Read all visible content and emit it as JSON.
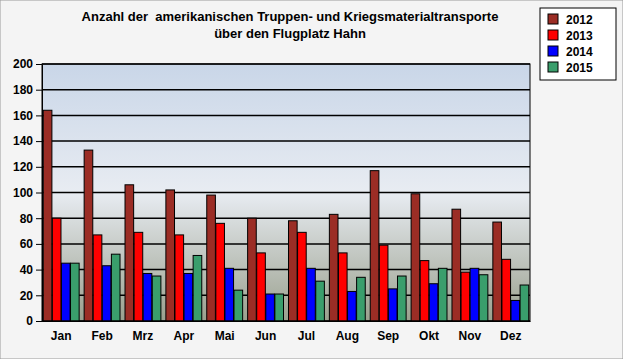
{
  "chart_data": {
    "type": "bar",
    "title": "Anzahl der  amerikanischen Truppen- und Kriegsmaterialtransporte\nüber den Flugplatz Hahn",
    "categories": [
      "Jan",
      "Feb",
      "Mrz",
      "Apr",
      "Mai",
      "Jun",
      "Jul",
      "Aug",
      "Sep",
      "Okt",
      "Nov",
      "Dez"
    ],
    "series": [
      {
        "name": "2012",
        "color": "#9b2d25",
        "values": [
          164,
          133,
          106,
          102,
          98,
          80,
          78,
          83,
          117,
          99,
          87,
          77
        ]
      },
      {
        "name": "2013",
        "color": "#ff0000",
        "values": [
          80,
          67,
          69,
          67,
          76,
          53,
          69,
          53,
          59,
          47,
          38,
          48
        ]
      },
      {
        "name": "2014",
        "color": "#0000ff",
        "values": [
          45,
          43,
          37,
          37,
          41,
          21,
          41,
          23,
          25,
          29,
          41,
          16
        ]
      },
      {
        "name": "2015",
        "color": "#3a9e6c",
        "values": [
          45,
          52,
          35,
          51,
          24,
          21,
          31,
          34,
          35,
          41,
          36,
          28
        ]
      }
    ],
    "ylim": [
      0,
      200
    ],
    "yticks": [
      0,
      20,
      40,
      60,
      80,
      100,
      120,
      140,
      160,
      180,
      200
    ],
    "grid": true,
    "legend": "top-right"
  }
}
